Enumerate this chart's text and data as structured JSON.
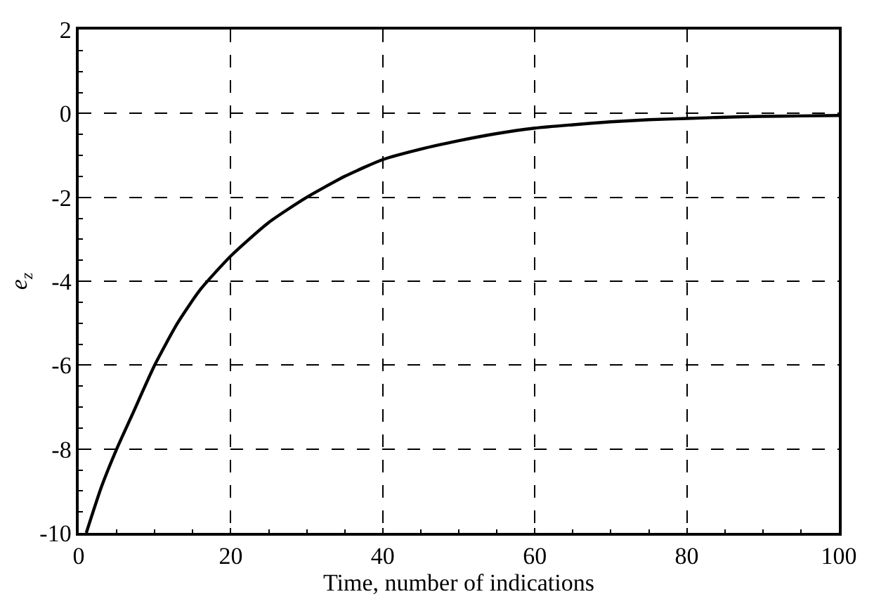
{
  "chart_data": {
    "type": "line",
    "xlabel": "Time, number of indications",
    "ylabel": "e$_{z}$",
    "x": [
      1,
      3,
      5,
      7,
      10,
      13,
      16,
      20,
      25,
      30,
      35,
      40,
      45,
      50,
      55,
      60,
      65,
      70,
      75,
      80,
      85,
      90,
      95,
      100
    ],
    "series": [
      {
        "color": "#000000",
        "values": [
          -10,
          -8.9,
          -8.0,
          -7.2,
          -6.0,
          -5.0,
          -4.2,
          -3.4,
          -2.6,
          -2.0,
          -1.5,
          -1.1,
          -0.85,
          -0.65,
          -0.48,
          -0.35,
          -0.27,
          -0.2,
          -0.15,
          -0.12,
          -0.09,
          -0.07,
          -0.06,
          -0.05
        ]
      }
    ],
    "xlim": [
      0,
      100
    ],
    "xticks": [
      0,
      20,
      40,
      60,
      80,
      100
    ],
    "ylim": [
      -10,
      2
    ],
    "yticks": [
      -10,
      -8,
      -6,
      -4,
      -2,
      0,
      2
    ],
    "grid": true,
    "line_style": "solid"
  }
}
